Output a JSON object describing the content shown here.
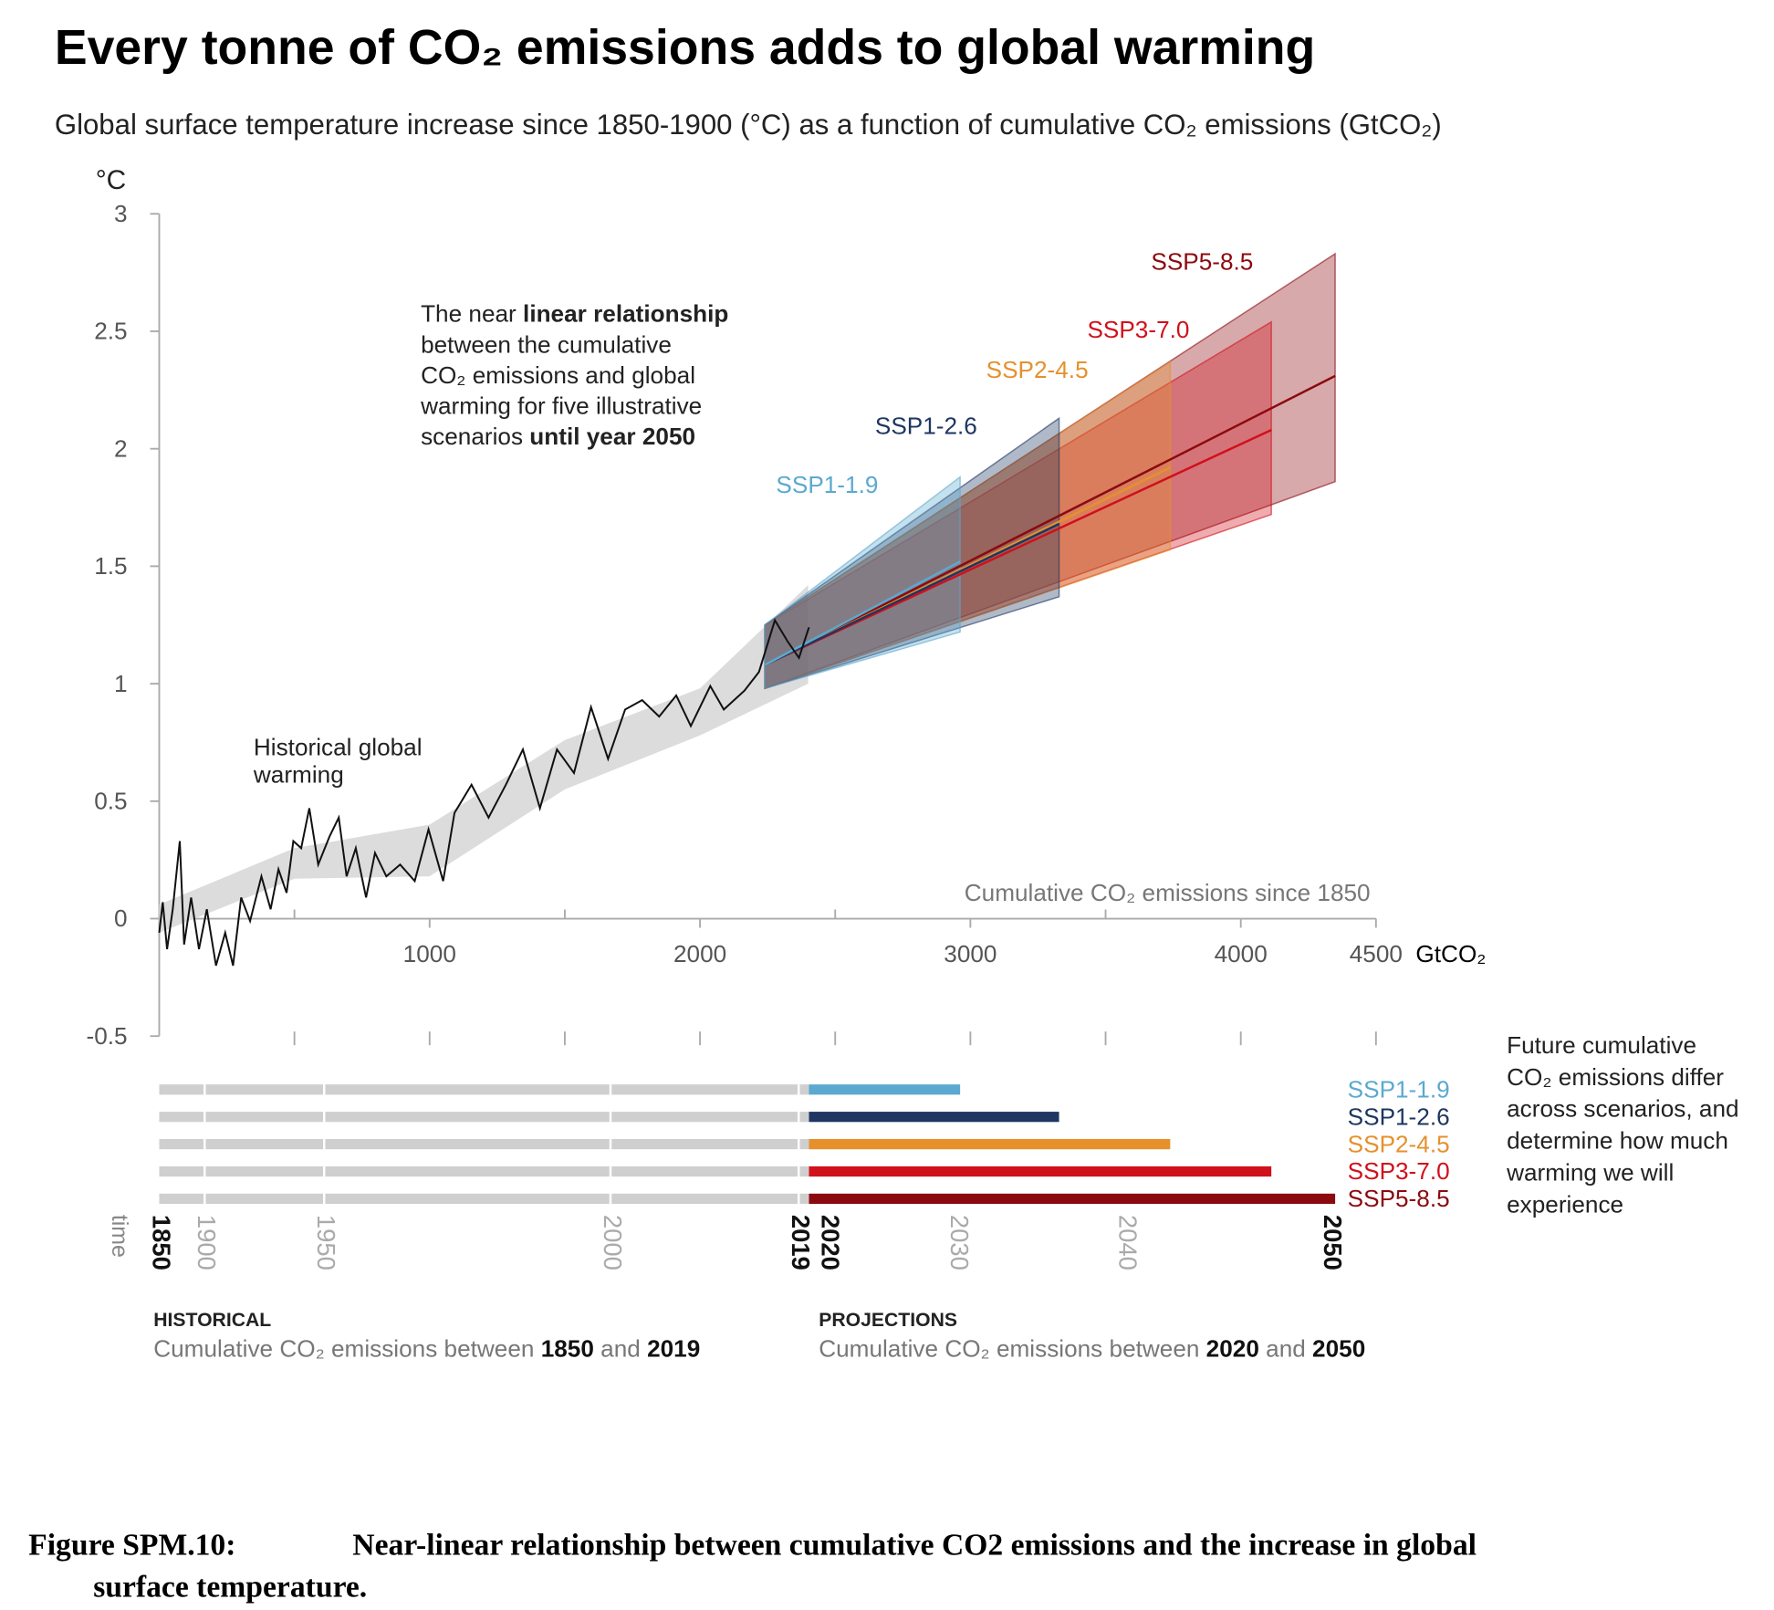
{
  "title": "Every tonne of CO₂ emissions adds to global warming",
  "subtitle": "Global surface temperature increase since 1850-1900 (°C) as a function of cumulative CO₂ emissions (GtCO₂)",
  "chart_data": {
    "type": "line",
    "y_unit": "°C",
    "x_unit": "GtCO₂",
    "x_label": "Cumulative CO₂ emissions since 1850",
    "xlim": [
      0,
      4500
    ],
    "ylim": [
      -0.5,
      3
    ],
    "xticks": [
      1000,
      2000,
      3000,
      4000,
      4500
    ],
    "xticks_minor": [
      500,
      1500,
      2500,
      3500
    ],
    "yticks": [
      3,
      2.5,
      2,
      1.5,
      1,
      0.5,
      0,
      -0.5
    ],
    "historical": {
      "label_lines": [
        "Historical global",
        "warming"
      ],
      "color": "#111111",
      "x": [
        0,
        13,
        29,
        50,
        76,
        92,
        118,
        147,
        176,
        210,
        244,
        273,
        303,
        336,
        378,
        412,
        441,
        471,
        496,
        525,
        555,
        588,
        630,
        664,
        693,
        727,
        765,
        798,
        840,
        891,
        945,
        996,
        1050,
        1092,
        1155,
        1218,
        1282,
        1345,
        1408,
        1471,
        1534,
        1597,
        1660,
        1723,
        1786,
        1849,
        1912,
        1966,
        2038,
        2088,
        2164,
        2218,
        2277,
        2324,
        2366,
        2403
      ],
      "values": [
        -0.06,
        0.07,
        -0.13,
        0.04,
        0.33,
        -0.11,
        0.09,
        -0.13,
        0.04,
        -0.2,
        -0.06,
        -0.2,
        0.09,
        -0.01,
        0.18,
        0.04,
        0.21,
        0.11,
        0.33,
        0.3,
        0.47,
        0.23,
        0.35,
        0.43,
        0.18,
        0.3,
        0.09,
        0.28,
        0.18,
        0.23,
        0.16,
        0.38,
        0.16,
        0.45,
        0.57,
        0.43,
        0.57,
        0.72,
        0.47,
        0.72,
        0.62,
        0.9,
        0.68,
        0.89,
        0.93,
        0.86,
        0.95,
        0.82,
        0.99,
        0.89,
        0.97,
        1.05,
        1.27,
        1.18,
        1.11,
        1.24
      ],
      "band": {
        "color": "#dcdcdc",
        "x": [
          0,
          500,
          1000,
          1500,
          2000,
          2400
        ],
        "lower": [
          -0.06,
          0.17,
          0.18,
          0.55,
          0.78,
          1.0
        ],
        "upper": [
          0.06,
          0.3,
          0.4,
          0.76,
          0.98,
          1.42
        ]
      }
    },
    "series": [
      {
        "name": "SSP1-1.9",
        "color": "#5ba9cf",
        "x": [
          2240,
          2962
        ],
        "values": [
          1.08,
          1.52
        ],
        "lower": [
          0.98,
          1.22
        ],
        "upper": [
          1.25,
          1.88
        ]
      },
      {
        "name": "SSP1-2.6",
        "color": "#1e3661",
        "x": [
          2240,
          3328
        ],
        "values": [
          1.08,
          1.68
        ],
        "lower": [
          0.98,
          1.37
        ],
        "upper": [
          1.25,
          2.13
        ]
      },
      {
        "name": "SSP2-4.5",
        "color": "#e6902c",
        "x": [
          2240,
          3739
        ],
        "values": [
          1.08,
          1.92
        ],
        "lower": [
          0.98,
          1.57
        ],
        "upper": [
          1.25,
          2.37
        ]
      },
      {
        "name": "SSP3-7.0",
        "color": "#d0101b",
        "x": [
          2240,
          4113
        ],
        "values": [
          1.08,
          2.08
        ],
        "lower": [
          0.98,
          1.72
        ],
        "upper": [
          1.25,
          2.54
        ]
      },
      {
        "name": "SSP5-8.5",
        "color": "#8b0a0f",
        "x": [
          2240,
          4349
        ],
        "values": [
          1.08,
          2.31
        ],
        "lower": [
          0.98,
          1.86
        ],
        "upper": [
          1.25,
          2.83
        ]
      }
    ],
    "annotation": {
      "lines": [
        [
          {
            "text": "The near "
          },
          {
            "text": "linear relationship",
            "bold": true
          }
        ],
        [
          {
            "text": "between the cumulative"
          }
        ],
        [
          {
            "text": "CO₂ emissions and global"
          }
        ],
        [
          {
            "text": "warming for five illustrative"
          }
        ],
        [
          {
            "text": "scenarios "
          },
          {
            "text": "until year 2050",
            "bold": true
          }
        ]
      ]
    },
    "timeline": {
      "label": "time",
      "years": [
        {
          "year": 1850,
          "x": 0,
          "bold": true
        },
        {
          "year": 1900,
          "x": 168,
          "bold": false
        },
        {
          "year": 1950,
          "x": 610,
          "bold": false
        },
        {
          "year": 2000,
          "x": 1669,
          "bold": false
        },
        {
          "year": 2019,
          "x": 2365,
          "bold": true
        },
        {
          "year": 2020,
          "x": 2475,
          "bold": true
        },
        {
          "year": 2030,
          "x": 2952,
          "bold": false
        },
        {
          "year": 2040,
          "x": 3575,
          "bold": false
        },
        {
          "year": 2050,
          "x": 4332,
          "bold": true
        }
      ],
      "note_lines": [
        "Future cumulative",
        "CO₂ emissions differ",
        "across scenarios, and",
        "determine how much",
        "warming we will",
        "experience"
      ],
      "historical": {
        "heading": "HISTORICAL",
        "runs": [
          {
            "text": "Cumulative CO₂ emissions between "
          },
          {
            "text": "1850",
            "bold": true
          },
          {
            "text": " and "
          },
          {
            "text": "2019",
            "bold": true
          }
        ]
      },
      "projections": {
        "heading": "PROJECTIONS",
        "runs": [
          {
            "text": "Cumulative CO₂ emissions between "
          },
          {
            "text": "2020",
            "bold": true
          },
          {
            "text": " and "
          },
          {
            "text": "2050",
            "bold": true
          }
        ]
      }
    }
  },
  "caption": {
    "label": "Figure SPM.10:",
    "lines": [
      "Near-linear relationship between cumulative CO2 emissions and the increase in global",
      "surface temperature."
    ]
  }
}
